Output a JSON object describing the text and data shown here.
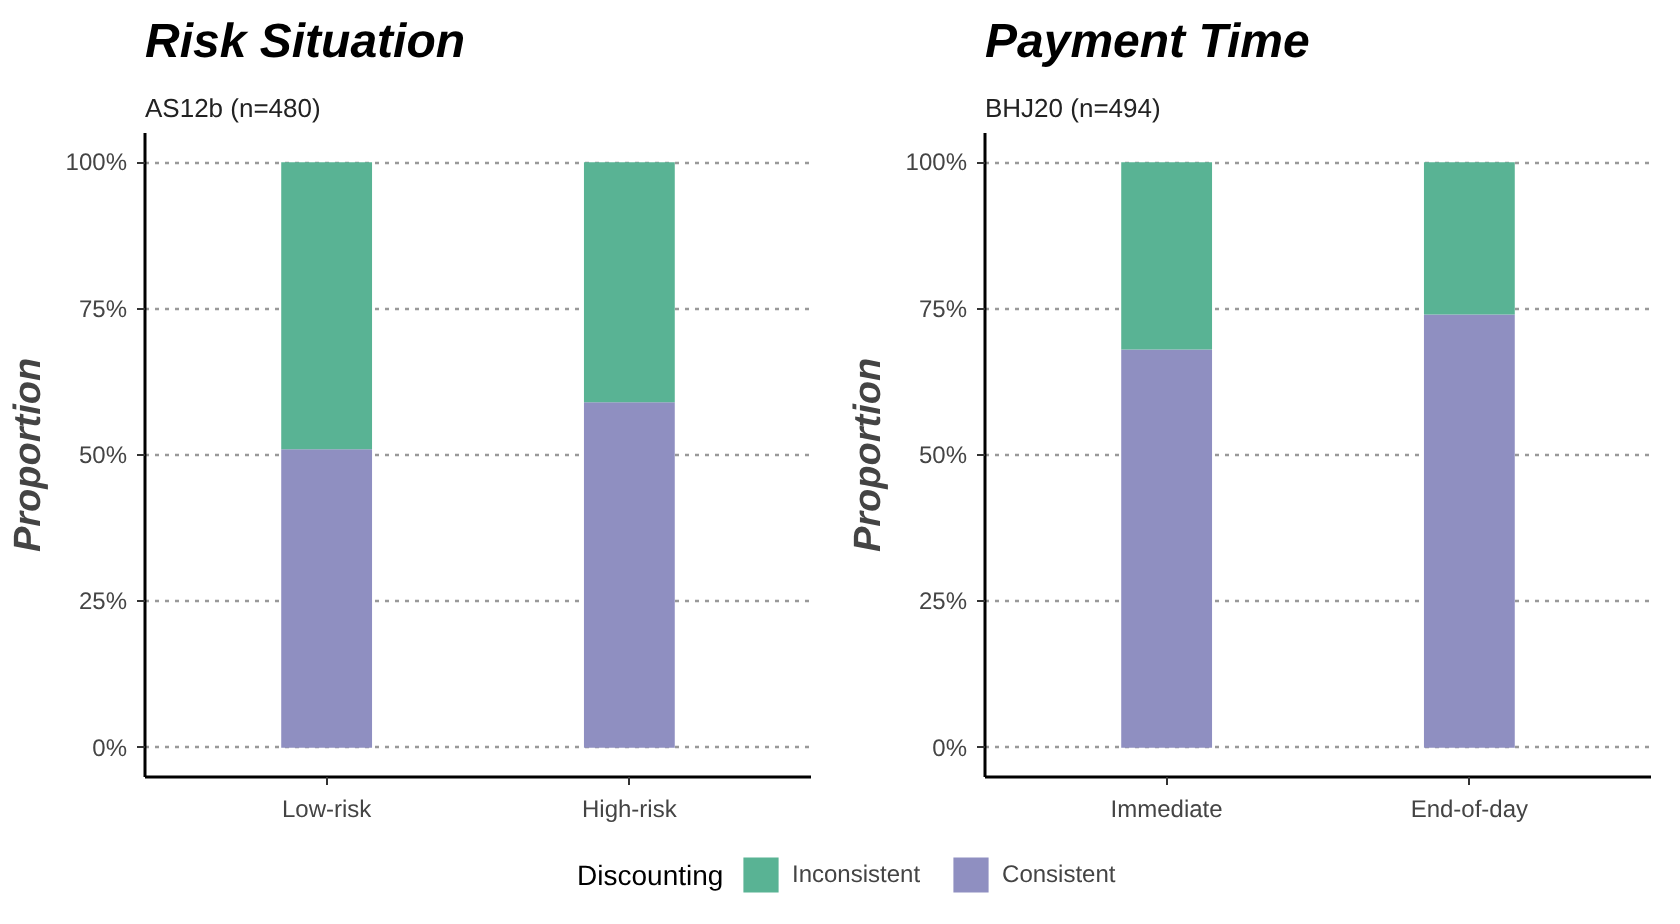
{
  "chart_data": [
    {
      "type": "bar",
      "title": "Risk Situation",
      "subtitle": "AS12b (n=480)",
      "ylabel": "Proportion",
      "stacked": true,
      "categories": [
        "Low-risk",
        "High-risk"
      ],
      "series": [
        {
          "name": "Consistent",
          "color": "#8f8fc1",
          "values": [
            0.51,
            0.59
          ]
        },
        {
          "name": "Inconsistent",
          "color": "#59b394",
          "values": [
            0.49,
            0.41
          ]
        }
      ],
      "ylim": [
        -0.05,
        1.05
      ],
      "yticks": [
        {
          "value": 0,
          "label": "0%"
        },
        {
          "value": 0.25,
          "label": "25%"
        },
        {
          "value": 0.5,
          "label": "50%"
        },
        {
          "value": 0.75,
          "label": "75%"
        },
        {
          "value": 1,
          "label": "100%"
        }
      ],
      "grid": "y",
      "legend": "bottom",
      "legend_title": "Discounting"
    },
    {
      "type": "bar",
      "title": "Payment Time",
      "subtitle": "BHJ20 (n=494)",
      "ylabel": "Proportion",
      "stacked": true,
      "categories": [
        "Immediate",
        "End-of-day"
      ],
      "series": [
        {
          "color": "#8f8fc1",
          "values": [
            0.68,
            0.74
          ]
        },
        {
          "color": "#59b394",
          "values": [
            0.32,
            0.26
          ]
        }
      ],
      "ylim": [
        -0.05,
        1.05
      ],
      "yticks": [
        {
          "value": 0,
          "label": "0%"
        },
        {
          "value": 0.25,
          "label": "25%"
        },
        {
          "value": 0.5,
          "label": "50%"
        },
        {
          "value": 0.75,
          "label": "75%"
        },
        {
          "value": 1,
          "label": "100%"
        }
      ],
      "grid": "y"
    }
  ]
}
